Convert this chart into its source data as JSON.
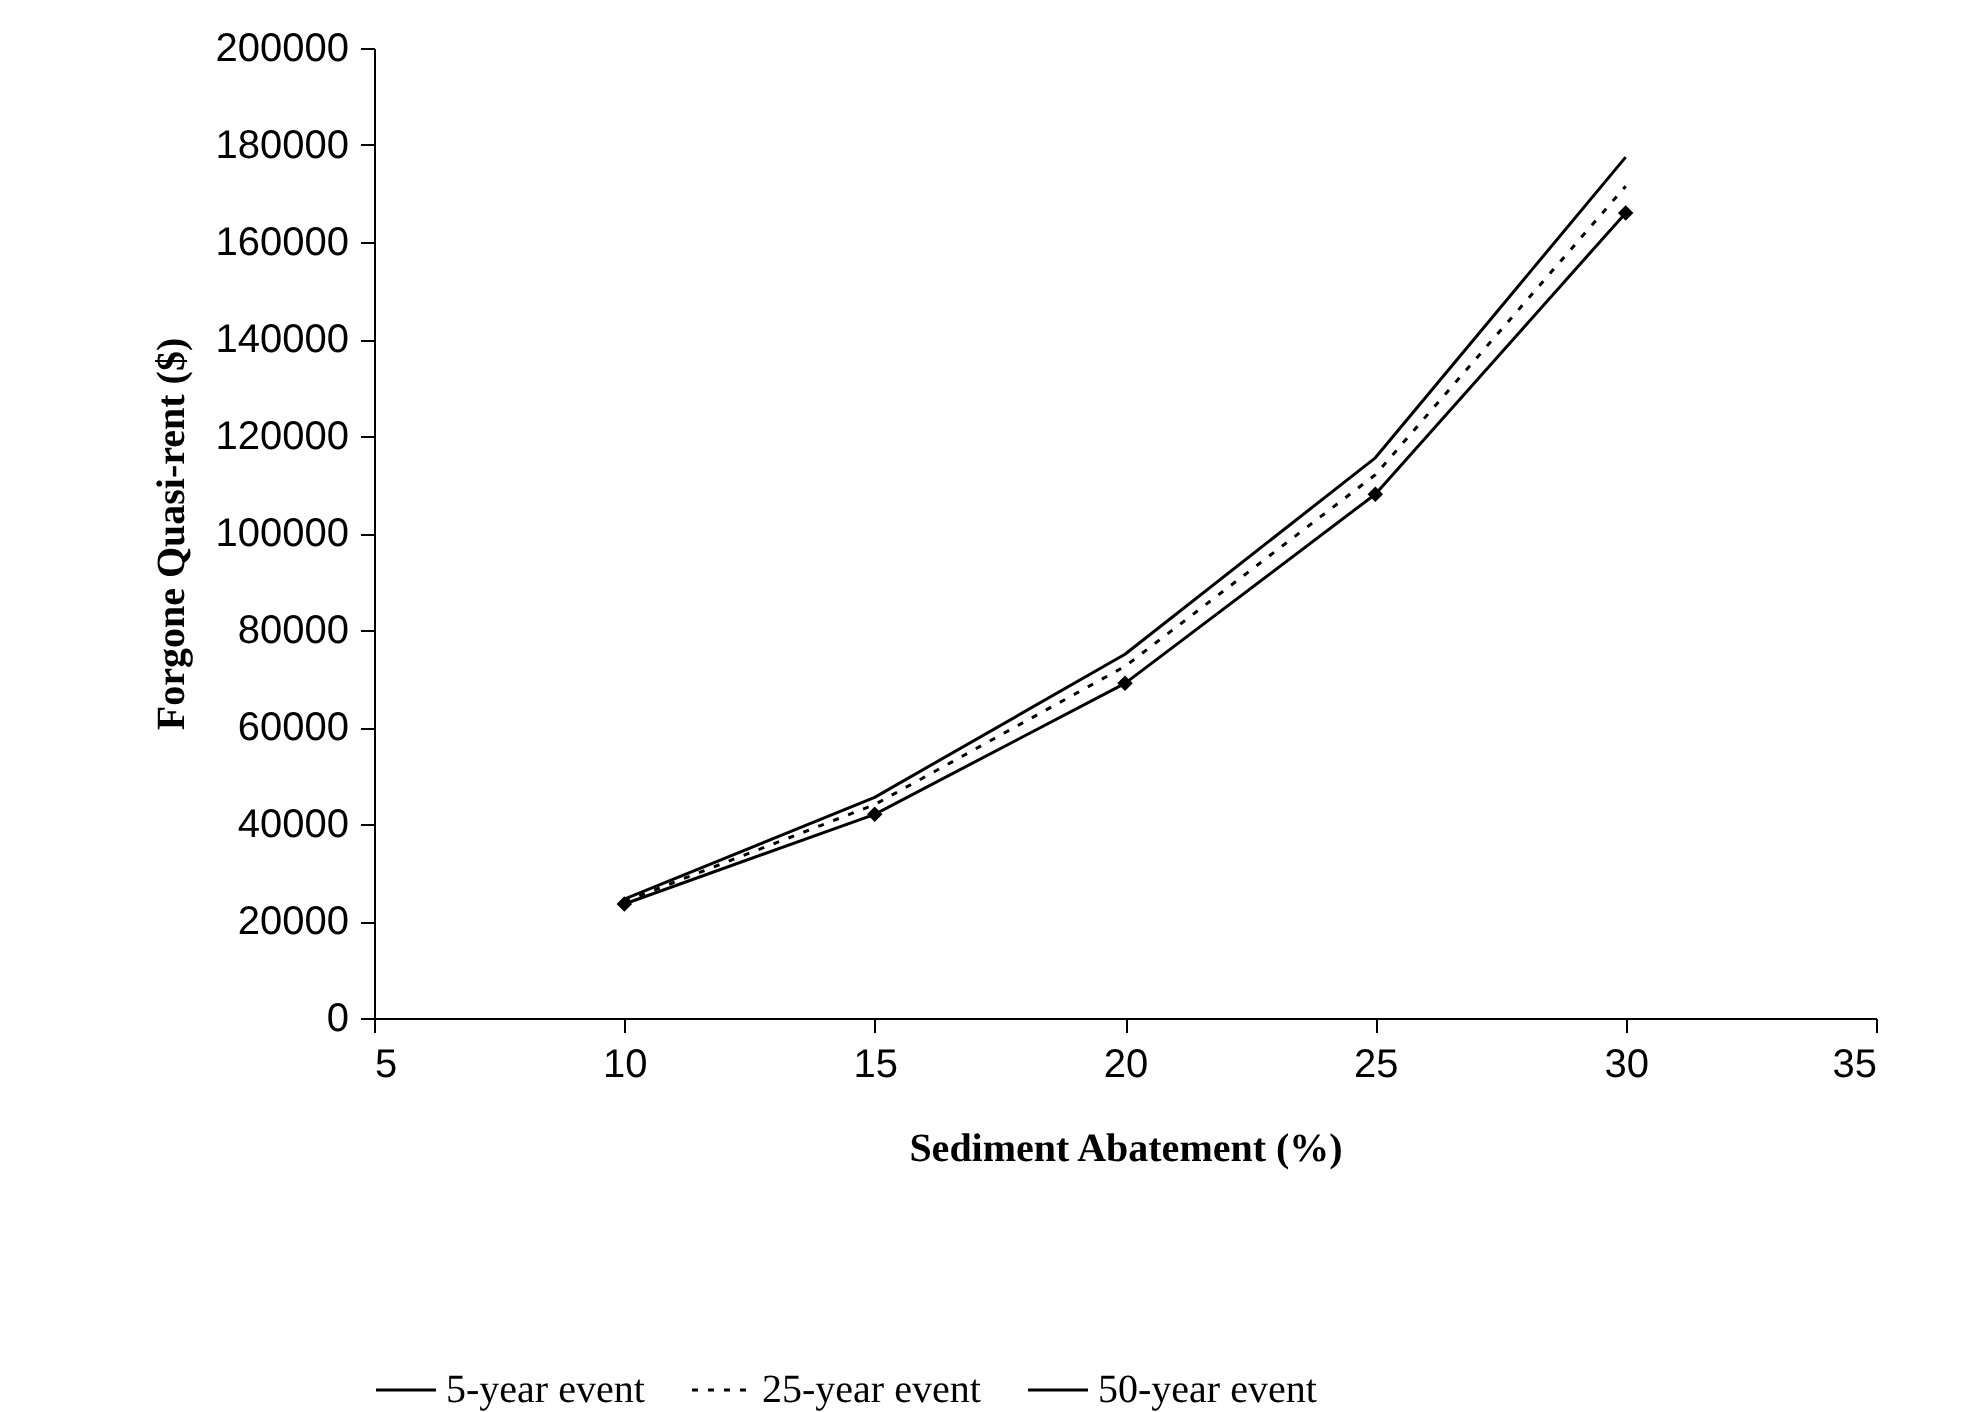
{
  "chart_data": {
    "type": "line",
    "xlabel": "Sediment Abatement (%)",
    "ylabel": "Forgone Quasi-rent ($)",
    "x": [
      10,
      15,
      20,
      25,
      30
    ],
    "series": [
      {
        "name": "5-year event",
        "color": "#000000",
        "marker": "diamond",
        "line_style": "solid",
        "values": [
          23500,
          42000,
          69000,
          108000,
          166000
        ]
      },
      {
        "name": "25-year event",
        "color": "#000000",
        "marker": "none",
        "line_style": "dotted",
        "values": [
          24000,
          44000,
          72500,
          112000,
          171500
        ]
      },
      {
        "name": "50-year event",
        "color": "#000000",
        "marker": "none",
        "line_style": "solid",
        "values": [
          24500,
          45500,
          75000,
          115500,
          177500
        ]
      }
    ],
    "xlim": [
      5,
      35
    ],
    "xticks": [
      5,
      10,
      15,
      20,
      25,
      30,
      35
    ],
    "ylim": [
      0,
      200000
    ],
    "yticks": [
      0,
      20000,
      40000,
      60000,
      80000,
      100000,
      120000,
      140000,
      160000,
      180000,
      200000
    ],
    "grid": false,
    "legend": "bottom"
  }
}
